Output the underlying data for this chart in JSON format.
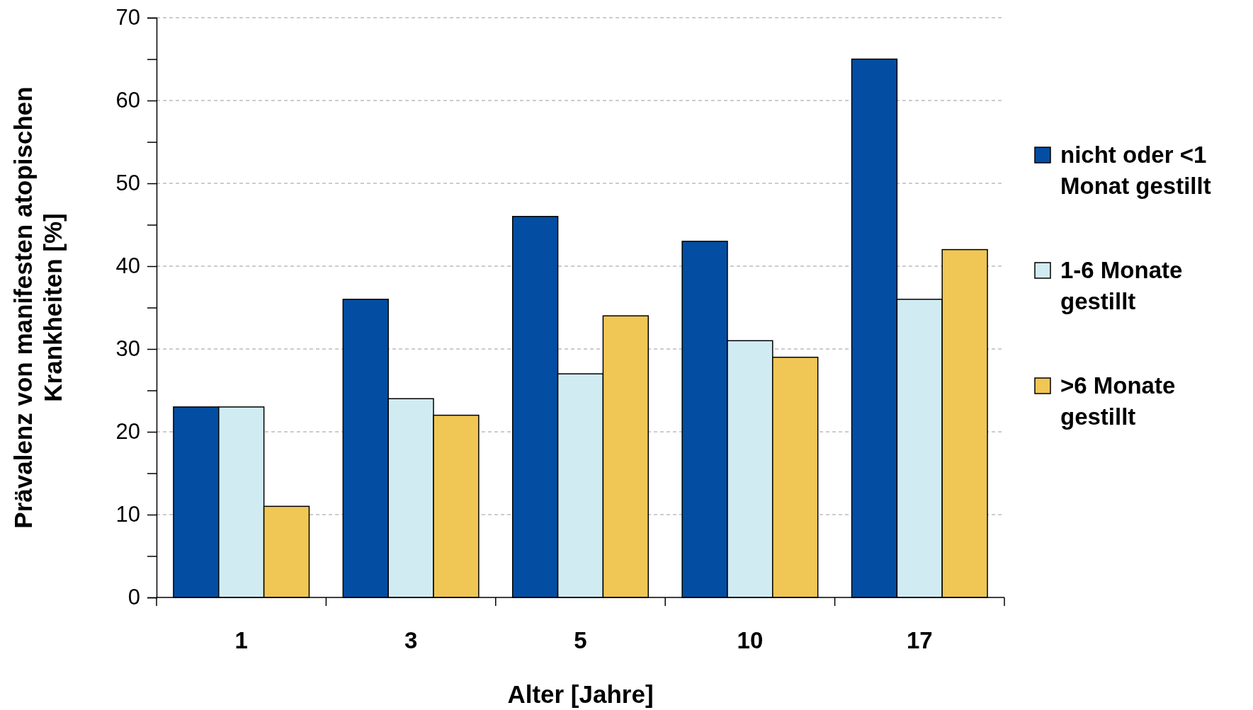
{
  "chart_data": {
    "type": "bar",
    "xlabel": "Alter [Jahre]",
    "ylabel": "Prävalenz von manifesten atopischen Krankheiten [%]",
    "categories": [
      "1",
      "3",
      "5",
      "10",
      "17"
    ],
    "series": [
      {
        "name": "nicht oder <1 Monat gestillt",
        "color": "#034ea2",
        "values": [
          23,
          36,
          46,
          43,
          65
        ]
      },
      {
        "name": "1-6 Monate gestillt",
        "color": "#d0ecf2",
        "values": [
          23,
          24,
          27,
          31,
          36
        ]
      },
      {
        "name": ">6 Monate gestillt",
        "color": "#f0c755",
        "values": [
          11,
          22,
          34,
          29,
          42
        ]
      }
    ],
    "ylim": [
      0,
      70
    ],
    "yticks": [
      0,
      {
        "value": 5,
        "label": null
      },
      10,
      {
        "value": 15,
        "label": null
      },
      20,
      {
        "value": 25,
        "label": null
      },
      30,
      {
        "value": 35,
        "label": null
      },
      40,
      {
        "value": 45,
        "label": null
      },
      50,
      {
        "value": 55,
        "label": null
      },
      60,
      {
        "value": 65,
        "label": null
      },
      70
    ],
    "grid": "y",
    "legend": "right"
  }
}
